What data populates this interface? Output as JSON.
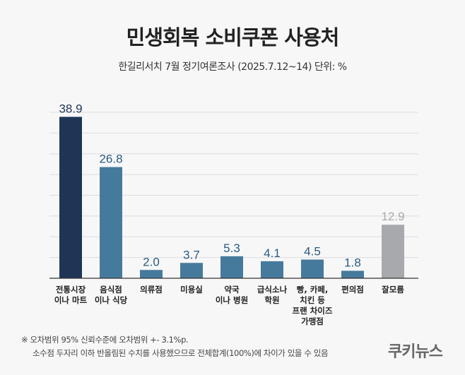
{
  "chart_data": {
    "type": "bar",
    "title": "민생회복 소비쿠폰 사용처",
    "subtitle": "한길리서치 7월 정기여론조사 (2025.7.12~14) 단위: %",
    "categories": [
      [
        "전통시장",
        "이나 마트"
      ],
      [
        "음식점",
        "이나 식당"
      ],
      [
        "의류점"
      ],
      [
        "미용실"
      ],
      [
        "약국",
        "이나 병원"
      ],
      [
        "급식소나",
        "학원"
      ],
      [
        "빵, 카페,",
        "치킨 등",
        "프랜 차이즈",
        "가맹점"
      ],
      [
        "편의점"
      ],
      [
        "잘모름"
      ]
    ],
    "values": [
      38.9,
      26.8,
      2.0,
      3.7,
      5.3,
      4.1,
      4.5,
      1.8,
      12.9
    ],
    "value_labels": [
      "38.9",
      "26.8",
      "2.0",
      "3.7",
      "5.3",
      "4.1",
      "4.5",
      "1.8",
      "12.9"
    ],
    "ylim": [
      0,
      40
    ],
    "grid": true,
    "grid_step": 5,
    "colors": {
      "highlight": "#1f3556",
      "default": "#467a9c",
      "unknown": "#a8a9ad",
      "label_dark": "#1f3556",
      "label_default": "#2a5a80",
      "label_unknown": "#a8a9ad"
    }
  },
  "footnote": {
    "line1": "※ 오차범위 95% 신뢰수준에 오차범위 +- 3.1%p.",
    "line2": "소수점 두자리 이하 반올림된 수치를 사용했으므로 전체합계(100%)에 차이가 있을 수 있음"
  },
  "logo": "쿠키뉴스"
}
